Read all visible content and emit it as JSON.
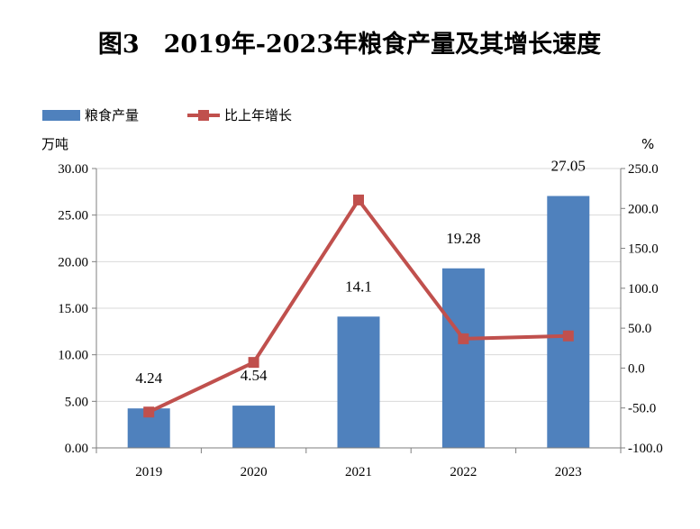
{
  "chart_data": {
    "type": "bar",
    "title": "图3　2019年-2023年粮食产量及其增长速度",
    "categories": [
      "2019",
      "2020",
      "2021",
      "2022",
      "2023"
    ],
    "left_axis": {
      "unit": "万吨",
      "ylim": [
        0,
        30
      ],
      "ticks": [
        "0.00",
        "5.00",
        "10.00",
        "15.00",
        "20.00",
        "25.00",
        "30.00"
      ]
    },
    "right_axis": {
      "unit": "%",
      "ylim": [
        -100,
        250
      ],
      "ticks": [
        "-100.0",
        "-50.0",
        "0.0",
        "50.0",
        "100.0",
        "150.0",
        "200.0",
        "250.0"
      ]
    },
    "series": [
      {
        "name": "粮食产量",
        "type": "bar",
        "axis": "left",
        "color": "#4f81bd",
        "values": [
          4.24,
          4.54,
          14.1,
          19.28,
          27.05
        ],
        "labels": [
          "4.24",
          "4.54",
          "14.1",
          "19.28",
          "27.05"
        ]
      },
      {
        "name": "比上年增长",
        "type": "line",
        "axis": "right",
        "color": "#c0504d",
        "values": [
          -55.1,
          7.1,
          210.6,
          36.7,
          40.3
        ]
      }
    ],
    "grid": true,
    "legend_position": "top-left"
  }
}
